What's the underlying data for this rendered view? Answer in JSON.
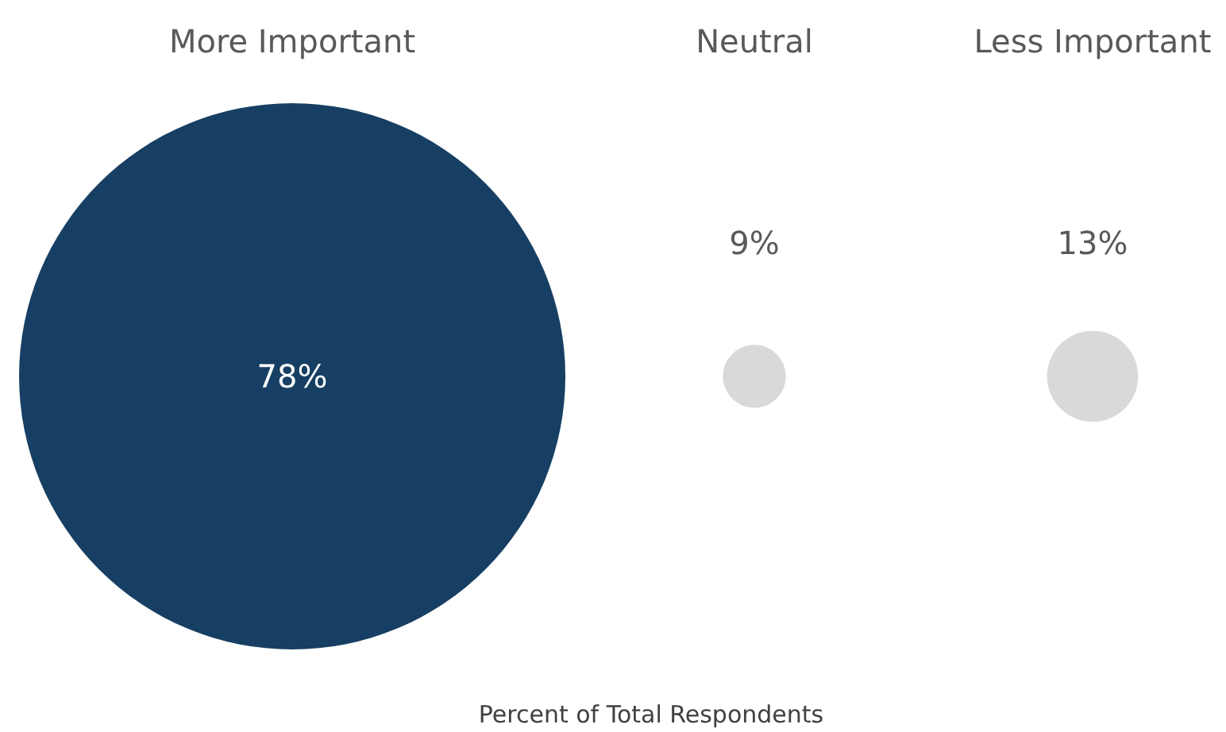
{
  "chart_data": {
    "type": "other",
    "categories": [
      "More Important",
      "Neutral",
      "Less Important"
    ],
    "values": [
      78,
      9,
      13
    ],
    "colors": [
      "#173f63",
      "#d9d9d9",
      "#d9d9d9"
    ],
    "value_labels": [
      "78%",
      "9%",
      "13%"
    ],
    "xlabel": "Percent of Total Respondents"
  }
}
